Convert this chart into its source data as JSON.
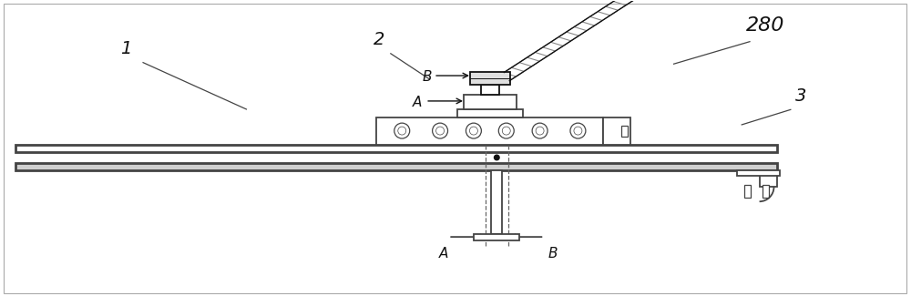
{
  "bg_color": "#ffffff",
  "line_color": "#444444",
  "dark_line": "#111111",
  "label_1": "1",
  "label_2": "2",
  "label_3": "3",
  "label_280": "280",
  "label_A_top": "A",
  "label_B_top": "B",
  "label_A_bot": "A",
  "label_B_bot": "B",
  "figsize": [
    10.0,
    3.25
  ],
  "dpi": 100
}
